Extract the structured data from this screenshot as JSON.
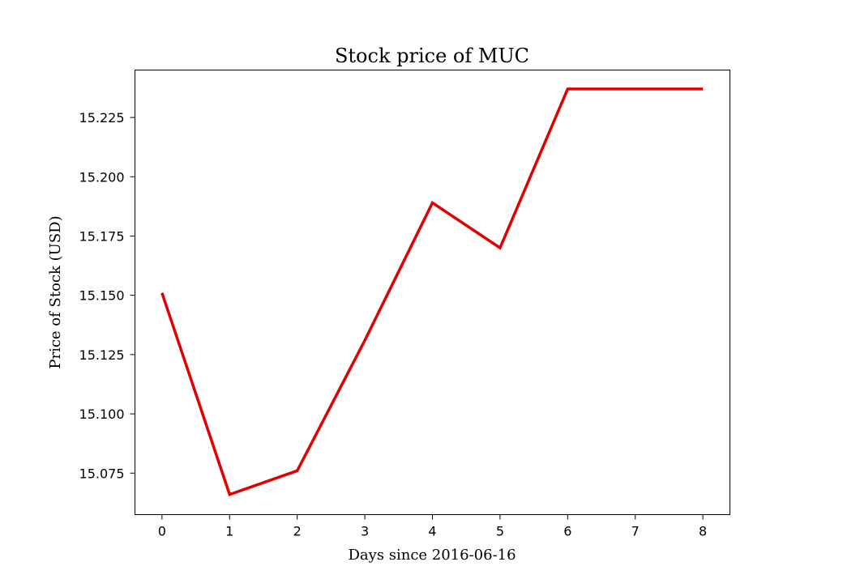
{
  "chart_data": {
    "type": "line",
    "title": "Stock price of MUC",
    "xlabel": "Days since 2016-06-16",
    "ylabel": "Price of Stock (USD)",
    "x": [
      0,
      1,
      2,
      3,
      4,
      5,
      6,
      7,
      8
    ],
    "series": [
      {
        "values": [
          15.151,
          15.066,
          15.076,
          15.131,
          15.189,
          15.17,
          15.237,
          15.237,
          15.237
        ],
        "color": "#e00000"
      }
    ],
    "xticks": [
      "0",
      "1",
      "2",
      "3",
      "4",
      "5",
      "6",
      "7",
      "8"
    ],
    "yticks": [
      "15.075",
      "15.100",
      "15.125",
      "15.150",
      "15.175",
      "15.200",
      "15.225"
    ],
    "xlim": [
      -0.4,
      8.4
    ],
    "ylim": [
      15.0575,
      15.245
    ],
    "grid": false
  }
}
